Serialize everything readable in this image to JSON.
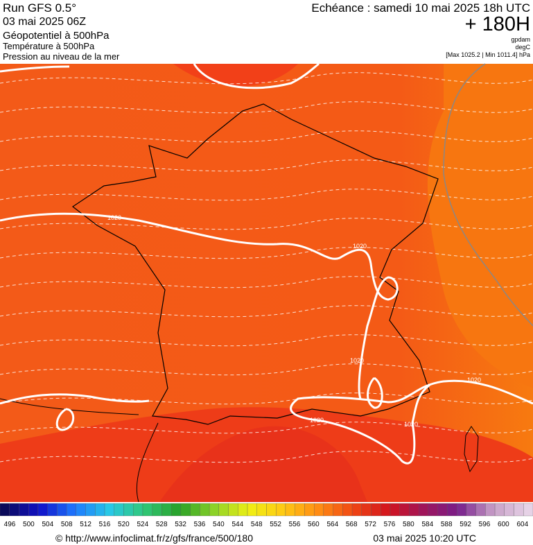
{
  "header": {
    "run": "Run GFS 0.5°",
    "date": "03 mai 2025 06Z",
    "fields": [
      "Géopotentiel à 500hPa",
      "Température à 500hPa",
      "Pression au niveau de la mer"
    ],
    "echeance": "Echéance : samedi 10 mai 2025 18h UTC",
    "lead": "+ 180H",
    "units": [
      "gpdam",
      "degC"
    ],
    "range": "[Max 1025.2 | Min 1011.4] hPa"
  },
  "map": {
    "isobar_labels": [
      "1020",
      "1020",
      "1020",
      "1020",
      "1020",
      "1020"
    ]
  },
  "colorbar": {
    "labels": [
      496,
      500,
      504,
      508,
      512,
      516,
      520,
      524,
      528,
      532,
      536,
      540,
      544,
      548,
      552,
      556,
      560,
      564,
      568,
      572,
      576,
      580,
      584,
      588,
      592,
      596,
      600,
      604
    ]
  },
  "footer": {
    "source": "© http://www.infoclimat.fr/z/gfs/france/500/180",
    "generated": "03 mai 2025 10:20 UTC"
  }
}
